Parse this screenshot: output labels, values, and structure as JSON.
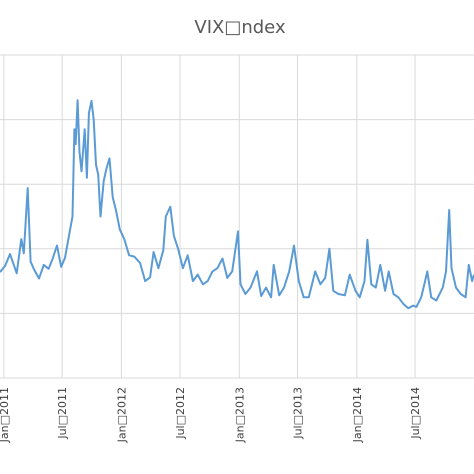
{
  "chart_data": {
    "type": "line",
    "title": "VIX□ndex",
    "xlabel": "",
    "ylabel": "",
    "x_ticks": [
      "Jan□2011",
      "Jul□2011",
      "Jan□2012",
      "Jul□2012",
      "Jan□2013",
      "Jul□2013",
      "Jan□2014",
      "Jul□2014"
    ],
    "x_tick_dates": [
      "2011-01-01",
      "2011-07-01",
      "2012-01-01",
      "2012-07-01",
      "2013-01-01",
      "2013-07-01",
      "2014-01-01",
      "2014-07-01"
    ],
    "xlim": [
      "2010-12-20",
      "2014-12-31"
    ],
    "ylim": [
      0,
      50
    ],
    "y_gridlines": [
      0,
      10,
      20,
      30,
      40,
      50
    ],
    "grid": true,
    "legend": "none",
    "series": [
      {
        "color": "#5b9bd5",
        "points": [
          [
            "2010-12-20",
            16.4
          ],
          [
            "2011-01-05",
            17.4
          ],
          [
            "2011-01-20",
            19.2
          ],
          [
            "2011-02-01",
            17.5
          ],
          [
            "2011-02-10",
            16.2
          ],
          [
            "2011-02-24",
            21.5
          ],
          [
            "2011-03-04",
            19.3
          ],
          [
            "2011-03-16",
            29.4
          ],
          [
            "2011-03-25",
            18.0
          ],
          [
            "2011-04-05",
            16.8
          ],
          [
            "2011-04-20",
            15.4
          ],
          [
            "2011-05-05",
            17.5
          ],
          [
            "2011-05-20",
            16.9
          ],
          [
            "2011-06-01",
            18.4
          ],
          [
            "2011-06-15",
            20.5
          ],
          [
            "2011-06-28",
            17.2
          ],
          [
            "2011-07-10",
            18.6
          ],
          [
            "2011-07-25",
            22.8
          ],
          [
            "2011-08-02",
            25.0
          ],
          [
            "2011-08-08",
            38.5
          ],
          [
            "2011-08-12",
            36.2
          ],
          [
            "2011-08-18",
            43.0
          ],
          [
            "2011-08-24",
            35.0
          ],
          [
            "2011-08-30",
            32.0
          ],
          [
            "2011-09-09",
            38.5
          ],
          [
            "2011-09-16",
            31.0
          ],
          [
            "2011-09-22",
            41.0
          ],
          [
            "2011-09-30",
            42.9
          ],
          [
            "2011-10-07",
            40.0
          ],
          [
            "2011-10-14",
            33.0
          ],
          [
            "2011-10-21",
            31.5
          ],
          [
            "2011-10-28",
            25.0
          ],
          [
            "2011-11-07",
            30.5
          ],
          [
            "2011-11-16",
            32.5
          ],
          [
            "2011-11-25",
            34.0
          ],
          [
            "2011-12-05",
            28.0
          ],
          [
            "2011-12-15",
            26.0
          ],
          [
            "2011-12-27",
            23.0
          ],
          [
            "2012-01-10",
            21.5
          ],
          [
            "2012-01-25",
            19.0
          ],
          [
            "2012-02-10",
            18.8
          ],
          [
            "2012-02-28",
            17.8
          ],
          [
            "2012-03-15",
            15.0
          ],
          [
            "2012-03-30",
            15.6
          ],
          [
            "2012-04-10",
            19.5
          ],
          [
            "2012-04-25",
            17.0
          ],
          [
            "2012-05-10",
            19.8
          ],
          [
            "2012-05-18",
            25.0
          ],
          [
            "2012-06-01",
            26.5
          ],
          [
            "2012-06-12",
            22.0
          ],
          [
            "2012-06-25",
            20.0
          ],
          [
            "2012-07-10",
            17.0
          ],
          [
            "2012-07-25",
            19.0
          ],
          [
            "2012-08-10",
            15.0
          ],
          [
            "2012-08-25",
            16.0
          ],
          [
            "2012-09-10",
            14.5
          ],
          [
            "2012-09-25",
            15.0
          ],
          [
            "2012-10-10",
            16.5
          ],
          [
            "2012-10-25",
            17.0
          ],
          [
            "2012-11-10",
            18.5
          ],
          [
            "2012-11-25",
            15.5
          ],
          [
            "2012-12-10",
            16.5
          ],
          [
            "2012-12-28",
            22.7
          ],
          [
            "2013-01-05",
            14.5
          ],
          [
            "2013-01-20",
            13.0
          ],
          [
            "2013-02-05",
            14.0
          ],
          [
            "2013-02-25",
            16.5
          ],
          [
            "2013-03-10",
            12.7
          ],
          [
            "2013-03-25",
            14.0
          ],
          [
            "2013-04-10",
            12.5
          ],
          [
            "2013-04-18",
            17.5
          ],
          [
            "2013-05-05",
            12.8
          ],
          [
            "2013-05-20",
            14.0
          ],
          [
            "2013-06-05",
            16.5
          ],
          [
            "2013-06-20",
            20.5
          ],
          [
            "2013-07-05",
            15.0
          ],
          [
            "2013-07-20",
            12.5
          ],
          [
            "2013-08-05",
            12.5
          ],
          [
            "2013-08-25",
            16.5
          ],
          [
            "2013-09-10",
            14.5
          ],
          [
            "2013-09-25",
            15.5
          ],
          [
            "2013-10-08",
            20.0
          ],
          [
            "2013-10-20",
            13.5
          ],
          [
            "2013-11-05",
            13.0
          ],
          [
            "2013-11-25",
            12.8
          ],
          [
            "2013-12-10",
            16.0
          ],
          [
            "2013-12-28",
            13.5
          ],
          [
            "2014-01-10",
            12.5
          ],
          [
            "2014-01-25",
            15.0
          ],
          [
            "2014-02-03",
            21.4
          ],
          [
            "2014-02-15",
            14.5
          ],
          [
            "2014-03-01",
            14.0
          ],
          [
            "2014-03-15",
            17.5
          ],
          [
            "2014-03-30",
            13.5
          ],
          [
            "2014-04-10",
            16.5
          ],
          [
            "2014-04-25",
            13.0
          ],
          [
            "2014-05-10",
            12.5
          ],
          [
            "2014-05-25",
            11.5
          ],
          [
            "2014-06-10",
            10.8
          ],
          [
            "2014-06-25",
            11.2
          ],
          [
            "2014-07-05",
            11.0
          ],
          [
            "2014-07-20",
            12.5
          ],
          [
            "2014-08-01",
            15.0
          ],
          [
            "2014-08-08",
            16.5
          ],
          [
            "2014-08-20",
            12.5
          ],
          [
            "2014-09-05",
            12.0
          ],
          [
            "2014-09-25",
            14.0
          ],
          [
            "2014-10-05",
            16.5
          ],
          [
            "2014-10-15",
            26.0
          ],
          [
            "2014-10-22",
            17.0
          ],
          [
            "2014-11-05",
            14.0
          ],
          [
            "2014-11-20",
            13.0
          ],
          [
            "2014-12-05",
            12.5
          ],
          [
            "2014-12-15",
            17.5
          ],
          [
            "2014-12-25",
            15.0
          ],
          [
            "2014-12-31",
            16.0
          ]
        ]
      }
    ]
  }
}
